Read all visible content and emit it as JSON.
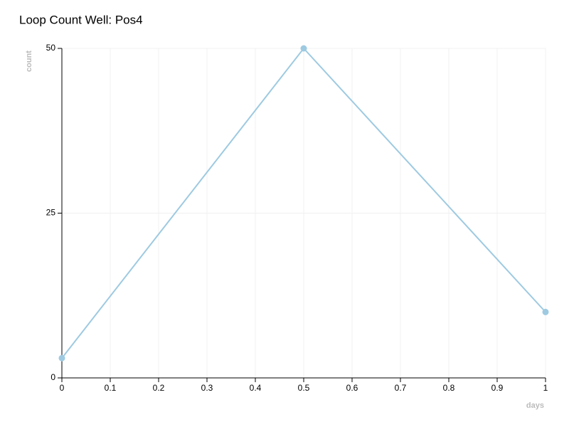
{
  "chart_data": {
    "type": "line",
    "title": "Loop Count Well: Pos4",
    "x_label": "days",
    "y_label": "count",
    "series": [
      {
        "name": "Pos4",
        "color": "#9ecae1",
        "x": [
          0,
          0.5,
          1
        ],
        "values": [
          3,
          50,
          10
        ]
      }
    ],
    "xlim": [
      0,
      1
    ],
    "xticks": [
      0,
      0.1,
      0.2,
      0.3,
      0.4,
      0.5,
      0.6,
      0.7,
      0.8,
      0.9,
      1
    ],
    "ylim": [
      0,
      50
    ],
    "yticks": [
      0,
      25,
      50
    ],
    "grid": true
  }
}
